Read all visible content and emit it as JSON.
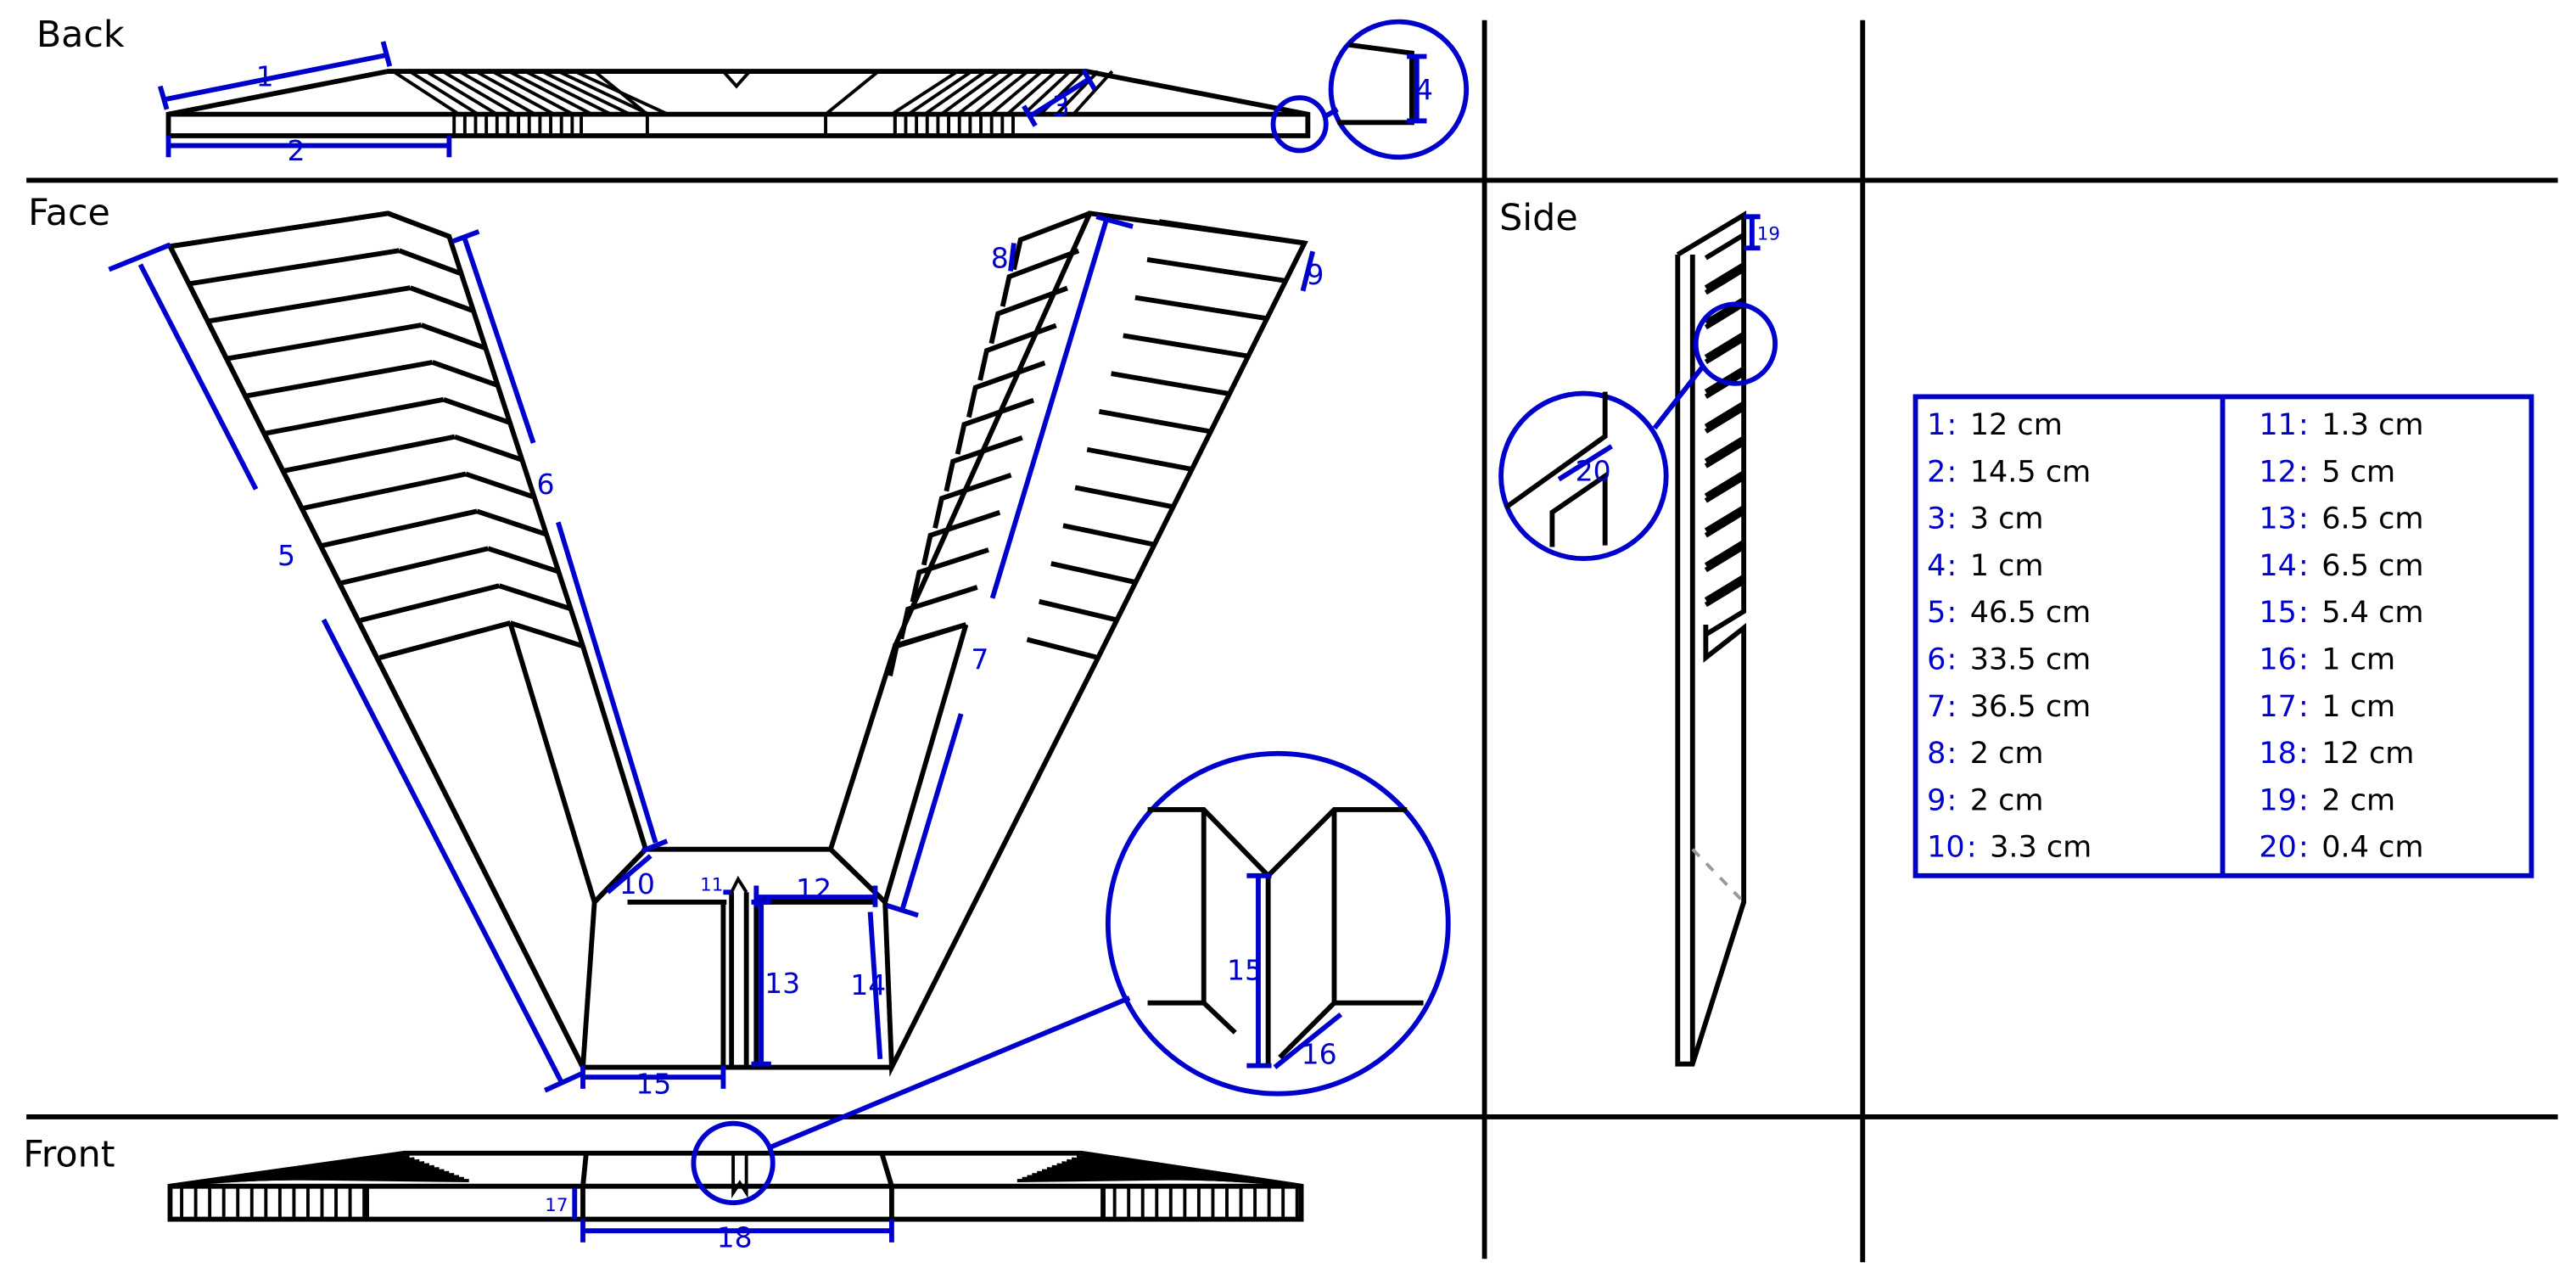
{
  "views": {
    "back": "Back",
    "face": "Face",
    "side": "Side",
    "front": "Front"
  },
  "dimension_labels": [
    "1",
    "2",
    "3",
    "4",
    "5",
    "6",
    "7",
    "8",
    "9",
    "10",
    "11",
    "12",
    "13",
    "14",
    "15",
    "16",
    "17",
    "18",
    "19",
    "20"
  ],
  "legend": [
    {
      "num": "1",
      "value": "12 cm"
    },
    {
      "num": "2",
      "value": "14.5 cm"
    },
    {
      "num": "3",
      "value": "3 cm"
    },
    {
      "num": "4",
      "value": "1 cm"
    },
    {
      "num": "5",
      "value": "46.5 cm"
    },
    {
      "num": "6",
      "value": "33.5 cm"
    },
    {
      "num": "7",
      "value": "36.5 cm"
    },
    {
      "num": "8",
      "value": "2 cm"
    },
    {
      "num": "9",
      "value": "2 cm"
    },
    {
      "num": "10",
      "value": "3.3 cm"
    },
    {
      "num": "11",
      "value": "1.3 cm"
    },
    {
      "num": "12",
      "value": "5 cm"
    },
    {
      "num": "13",
      "value": "6.5 cm"
    },
    {
      "num": "14",
      "value": "6.5 cm"
    },
    {
      "num": "15",
      "value": "5.4 cm"
    },
    {
      "num": "16",
      "value": "1 cm"
    },
    {
      "num": "17",
      "value": "1 cm"
    },
    {
      "num": "18",
      "value": "12 cm"
    },
    {
      "num": "19",
      "value": "2 cm"
    },
    {
      "num": "20",
      "value": "0.4 cm"
    }
  ],
  "legend_separator": ":",
  "colors": {
    "ink": "#000000",
    "dimension": "#0000cc",
    "background": "#ffffff"
  }
}
